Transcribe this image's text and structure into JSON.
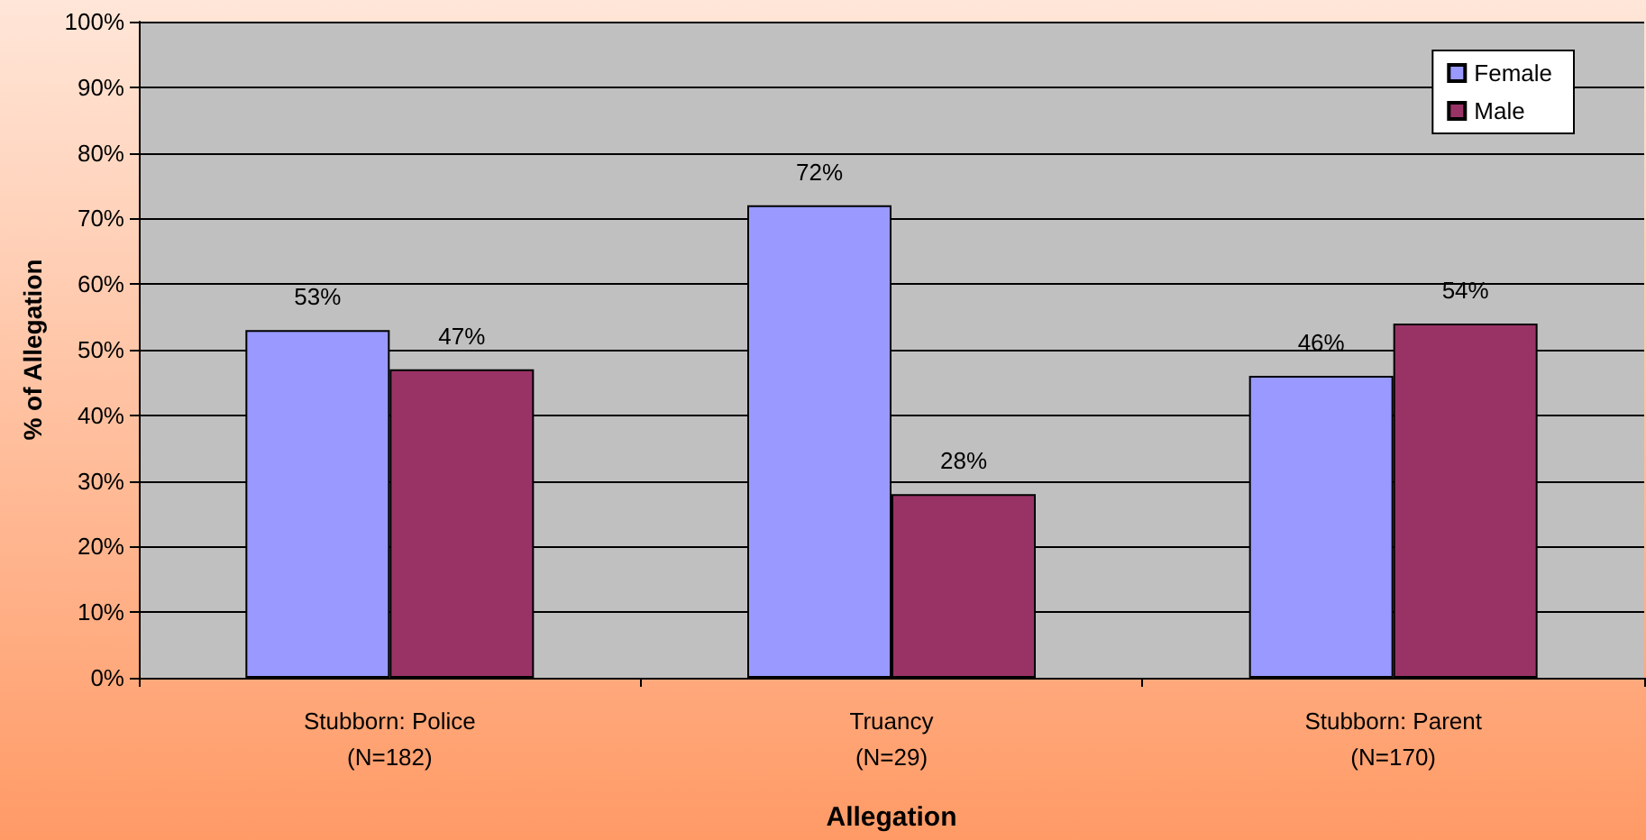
{
  "chart_data": {
    "type": "bar",
    "xlabel": "Allegation",
    "ylabel": "% of Allegation",
    "categories": [
      "Stubborn: Police\n(N=182)",
      "Truancy\n(N=29)",
      "Stubborn: Parent\n(N=170)"
    ],
    "series": [
      {
        "name": "Female",
        "color": "#9999ff",
        "values": [
          53,
          72,
          46
        ],
        "value_labels": [
          "53%",
          "72%",
          "46%"
        ]
      },
      {
        "name": "Male",
        "color": "#993366",
        "values": [
          47,
          28,
          54
        ],
        "value_labels": [
          "47%",
          "28%",
          "54%"
        ]
      }
    ],
    "ylim": [
      0,
      100
    ],
    "yticks": [
      {
        "value": 0,
        "label": "0%"
      },
      {
        "value": 10,
        "label": "10%"
      },
      {
        "value": 20,
        "label": "20%"
      },
      {
        "value": 30,
        "label": "30%"
      },
      {
        "value": 40,
        "label": "40%"
      },
      {
        "value": 50,
        "label": "50%"
      },
      {
        "value": 60,
        "label": "60%"
      },
      {
        "value": 70,
        "label": "70%"
      },
      {
        "value": 80,
        "label": "80%"
      },
      {
        "value": 90,
        "label": "90%"
      },
      {
        "value": 100,
        "label": "100%"
      }
    ],
    "grid": "y",
    "legend": "top right"
  }
}
